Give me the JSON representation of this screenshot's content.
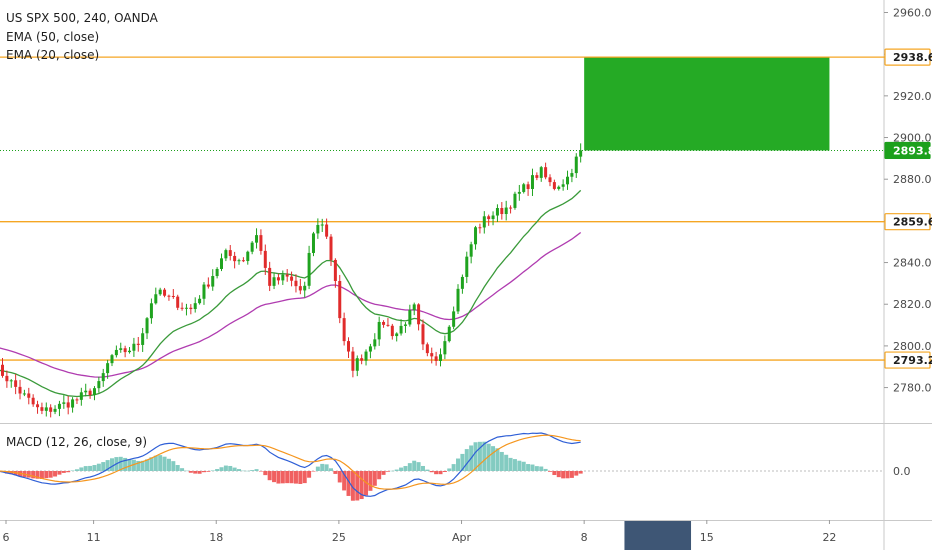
{
  "chart_data": {
    "type": "candlestick",
    "title": "US SPX 500, 240, OANDA",
    "indicators": [
      {
        "label": "EMA (50, close)",
        "color": "#b03cb0"
      },
      {
        "label": "EMA (20, close)",
        "color": "#3a9a3a"
      }
    ],
    "y_axis": {
      "range": [
        2763,
        2966
      ],
      "tick_values": [
        2780,
        2800,
        2820,
        2840,
        2860,
        2880,
        2900,
        2920,
        2940,
        2960
      ],
      "tick_labels": [
        "2780.0",
        "2800.0",
        "2820.0",
        "2840.0",
        "2860.0",
        "2880.0",
        "2900.0",
        "2920.0",
        "2940.0",
        "2960.0"
      ]
    },
    "x_axis": {
      "tick_labels": [
        "6",
        "11",
        "18",
        "25",
        "Apr",
        "8",
        "15",
        "22"
      ],
      "tick_days": [
        0,
        5,
        12,
        19,
        26,
        33,
        40,
        47
      ],
      "highlighted_range_days": [
        35.3,
        39.1
      ]
    },
    "horizontal_levels": [
      {
        "value": 2938.6,
        "label": "2938.6",
        "color": "#f5a623"
      },
      {
        "value": 2859.6,
        "label": "2859.6",
        "color": "#f5a623"
      },
      {
        "value": 2793.2,
        "label": "2793.2",
        "color": "#f5a623"
      }
    ],
    "current_price": {
      "value": 2893.8,
      "label": "2893.8",
      "color": "#1ca01c"
    },
    "target_zone": {
      "day_start": 33.0,
      "day_end": 47.0,
      "low": 2893.8,
      "high": 2938.6,
      "color": "#19a519"
    },
    "keypoints": [
      {
        "day": -0.7,
        "close": 2791
      },
      {
        "day": 0.8,
        "close": 2778
      },
      {
        "day": 2.0,
        "close": 2768
      },
      {
        "day": 4.0,
        "close": 2774
      },
      {
        "day": 5.3,
        "close": 2781
      },
      {
        "day": 6.0,
        "close": 2795
      },
      {
        "day": 7.5,
        "close": 2800
      },
      {
        "day": 8.5,
        "close": 2826
      },
      {
        "day": 9.5,
        "close": 2822
      },
      {
        "day": 10.5,
        "close": 2817
      },
      {
        "day": 11.5,
        "close": 2830
      },
      {
        "day": 12.5,
        "close": 2844
      },
      {
        "day": 13.5,
        "close": 2841
      },
      {
        "day": 14.3,
        "close": 2854
      },
      {
        "day": 15.0,
        "close": 2830
      },
      {
        "day": 16.0,
        "close": 2833
      },
      {
        "day": 17.0,
        "close": 2825
      },
      {
        "day": 17.5,
        "close": 2854
      },
      {
        "day": 18.1,
        "close": 2860
      },
      {
        "day": 18.8,
        "close": 2832
      },
      {
        "day": 19.2,
        "close": 2803
      },
      {
        "day": 19.8,
        "close": 2790
      },
      {
        "day": 20.5,
        "close": 2797
      },
      {
        "day": 21.5,
        "close": 2812
      },
      {
        "day": 22.2,
        "close": 2805
      },
      {
        "day": 23.3,
        "close": 2818
      },
      {
        "day": 23.9,
        "close": 2795
      },
      {
        "day": 24.5,
        "close": 2793
      },
      {
        "day": 25.0,
        "close": 2802
      },
      {
        "day": 26.0,
        "close": 2833
      },
      {
        "day": 26.8,
        "close": 2856
      },
      {
        "day": 27.5,
        "close": 2862
      },
      {
        "day": 28.5,
        "close": 2866
      },
      {
        "day": 29.5,
        "close": 2875
      },
      {
        "day": 30.5,
        "close": 2884
      },
      {
        "day": 31.2,
        "close": 2876
      },
      {
        "day": 32.0,
        "close": 2880
      },
      {
        "day": 32.8,
        "close": 2893.8
      }
    ],
    "macd": {
      "label": "MACD (12, 26, close, 9)",
      "zero_label": "0.0",
      "macd_color": "#2f5fd6",
      "signal_color": "#f5961e",
      "hist_up_color": "#83cbc1",
      "hist_down_color": "#f06060"
    }
  }
}
